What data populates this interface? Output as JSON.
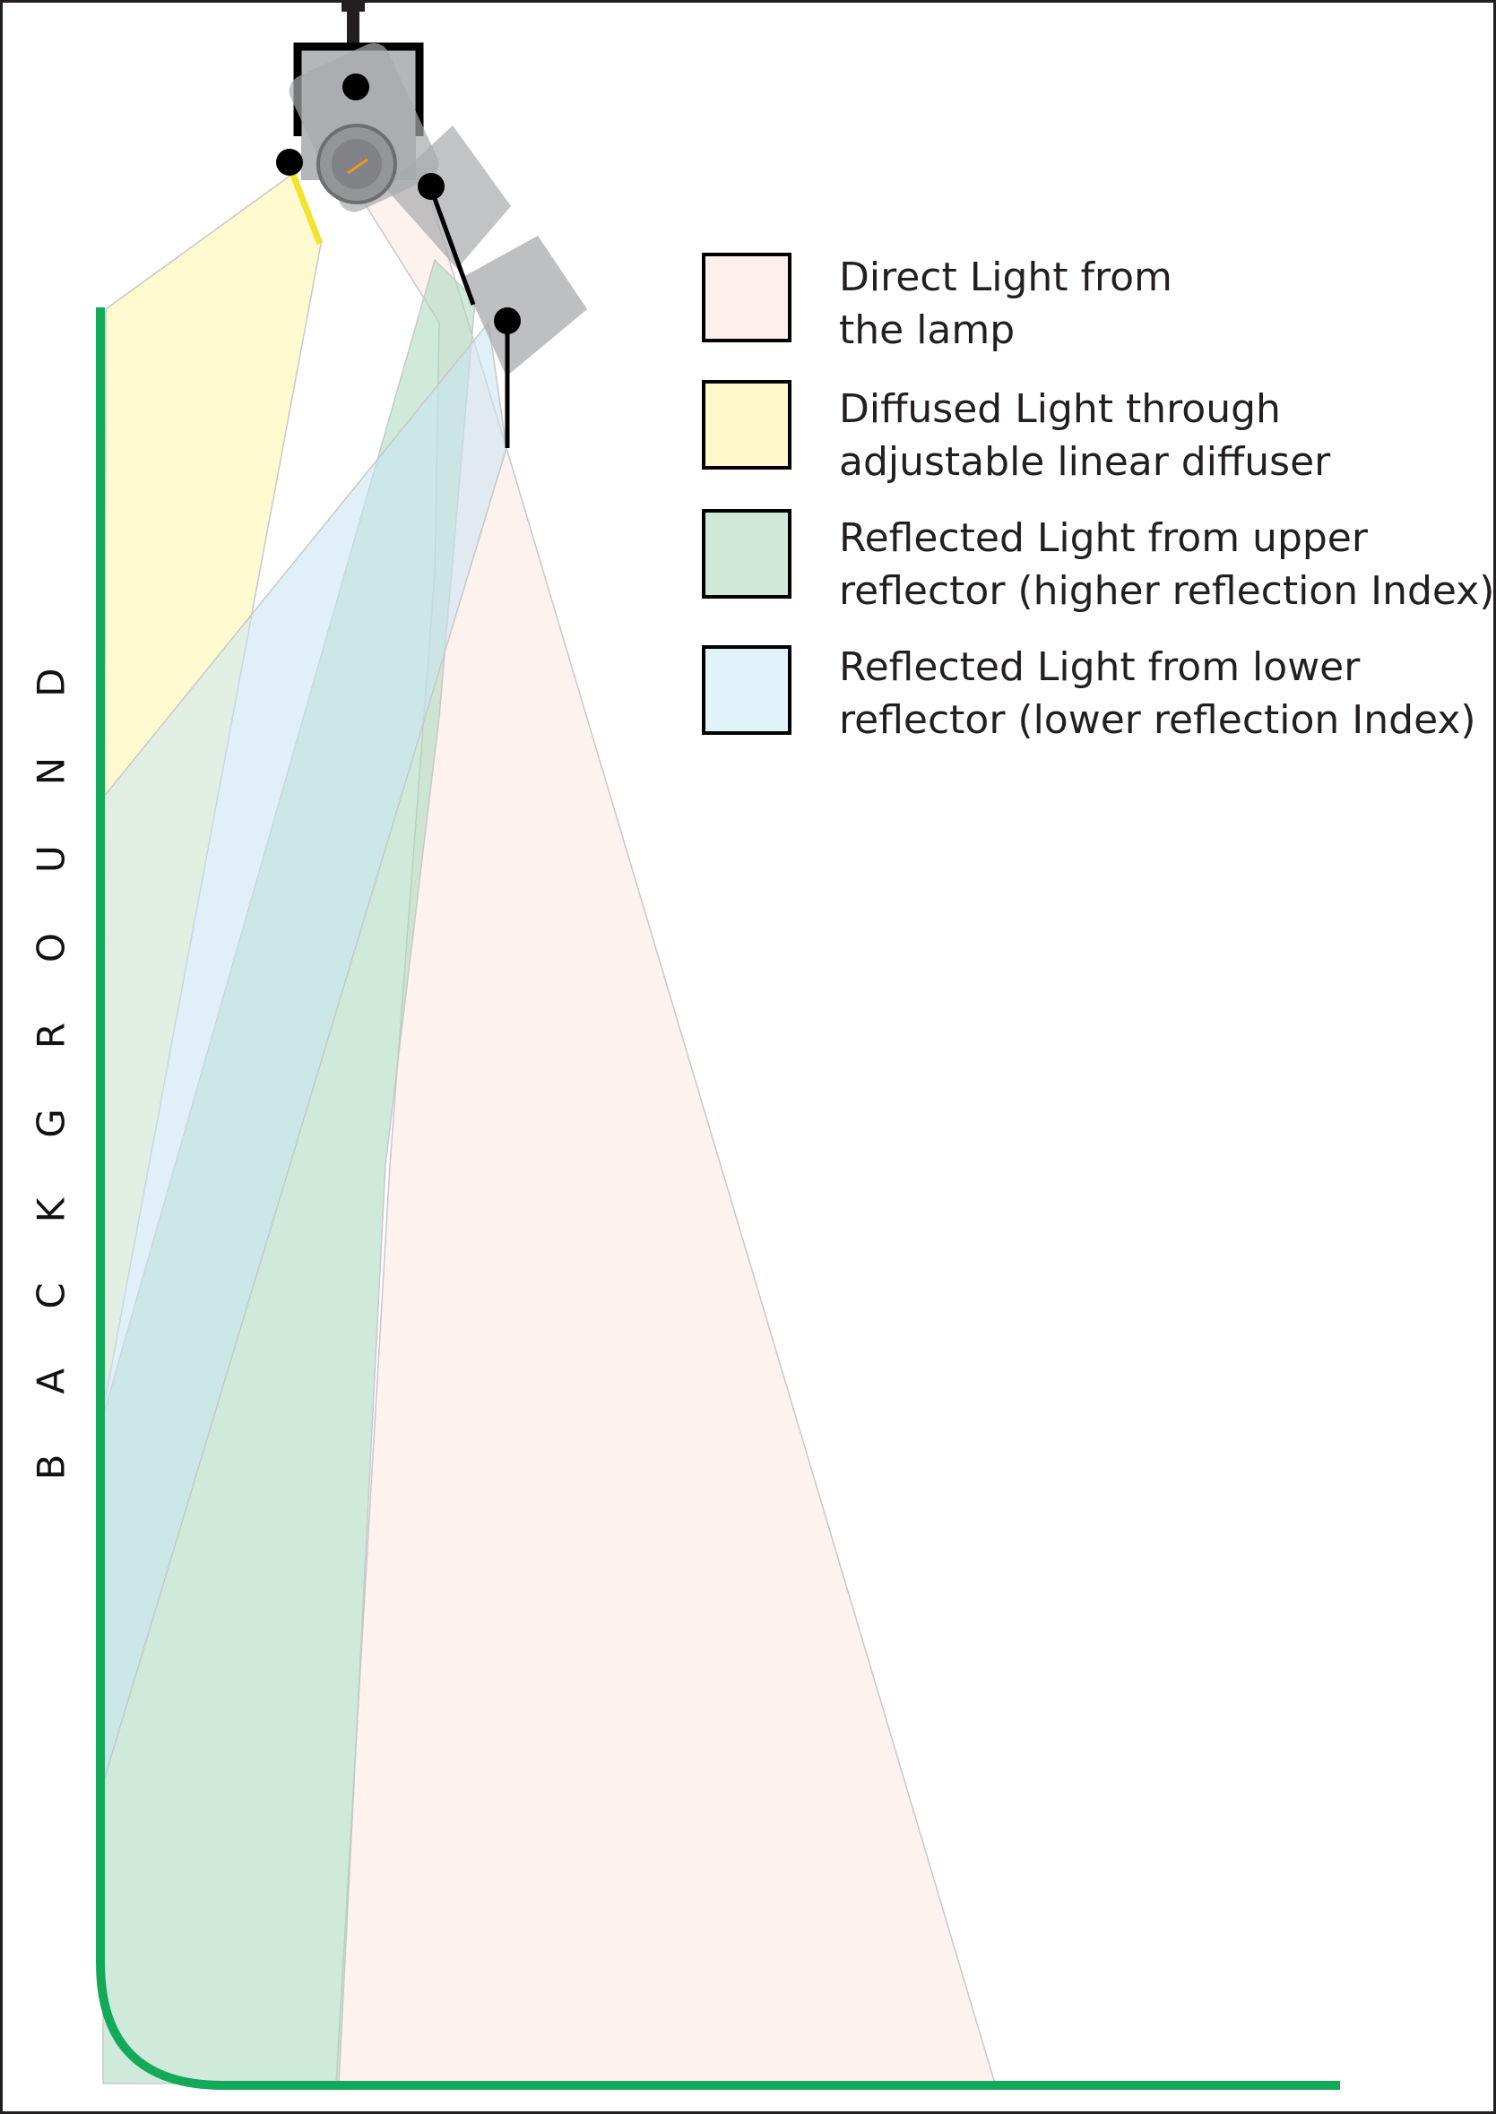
{
  "background_label": "BACKGROUND",
  "legend": [
    {
      "label": "Direct Light from\nthe lamp",
      "color": "#fdf0ec"
    },
    {
      "label": "Diffused Light through\nadjustable linear diffuser",
      "color": "#fff9c9"
    },
    {
      "label": "Reflected Light from upper\nreflector (higher reflection Index)",
      "color": "#cfe9d9"
    },
    {
      "label": "Reflected Light from lower\nreflector (lower reflection Index)",
      "color": "#e1f2fa"
    }
  ],
  "colors": {
    "background_line": "#13a85a",
    "fixture": "#a7a9ac",
    "pivot": "#000000",
    "diffuser_edge": "#f2e32b"
  }
}
